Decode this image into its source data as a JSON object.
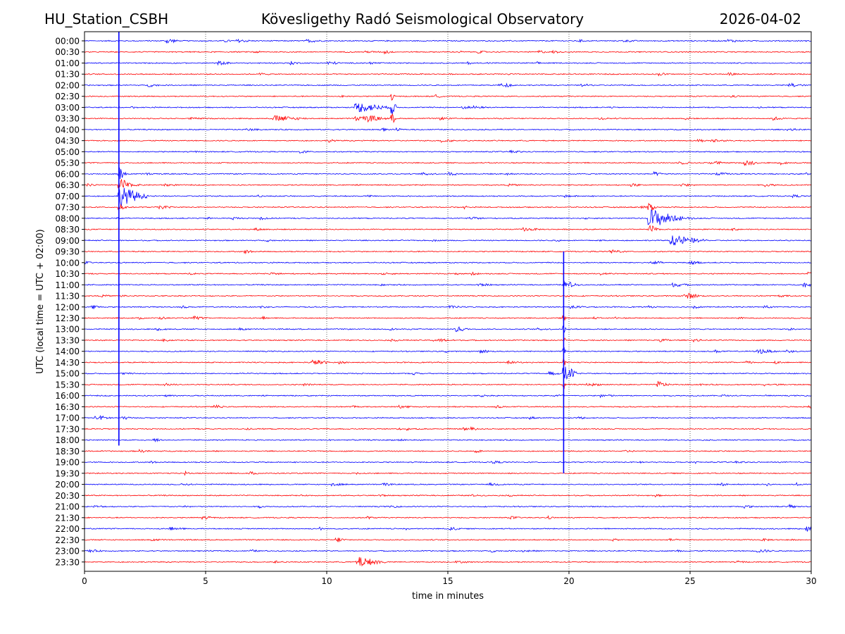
{
  "header": {
    "station": "HU_Station_CSBH",
    "observatory": "Kövesligethy Radó Seismological Observatory",
    "date": "2026-04-02"
  },
  "colors": {
    "even_row": "#0000ff",
    "odd_row": "#ff0000",
    "grid": "#000000"
  },
  "chart_data": {
    "type": "line",
    "title": "Kövesligethy Radó Seismological Observatory",
    "xlabel": "time in minutes",
    "ylabel": "UTC (local time = UTC + 02:00)",
    "xlim": [
      0,
      30
    ],
    "xticks": [
      0,
      5,
      10,
      15,
      20,
      25,
      30
    ],
    "grid": "vertical dotted at x ticks",
    "row_labels": [
      "00:00",
      "00:30",
      "01:00",
      "01:30",
      "02:00",
      "02:30",
      "03:00",
      "03:30",
      "04:00",
      "04:30",
      "05:00",
      "05:30",
      "06:00",
      "06:30",
      "07:00",
      "07:30",
      "08:00",
      "08:30",
      "09:00",
      "09:30",
      "10:00",
      "10:30",
      "11:00",
      "11:30",
      "12:00",
      "12:30",
      "13:00",
      "13:30",
      "14:00",
      "14:30",
      "15:00",
      "15:30",
      "16:00",
      "16:30",
      "17:00",
      "17:30",
      "18:00",
      "18:30",
      "19:00",
      "19:30",
      "20:00",
      "20:30",
      "21:00",
      "21:30",
      "22:00",
      "22:30",
      "23:00",
      "23:30"
    ],
    "series_color_pattern": [
      "blue",
      "red"
    ],
    "events": [
      {
        "row": "00:00",
        "minute": 3.4,
        "amp": 0.5,
        "dur": 0.5
      },
      {
        "row": "02:30",
        "minute": 12.7,
        "amp": 1.0,
        "dur": 0.1
      },
      {
        "row": "03:00",
        "minute": 11.2,
        "amp": 0.9,
        "dur": 1.5
      },
      {
        "row": "03:00",
        "minute": 12.7,
        "amp": 1.5,
        "dur": 0.2
      },
      {
        "row": "03:30",
        "minute": 7.8,
        "amp": 0.5,
        "dur": 1.4
      },
      {
        "row": "03:30",
        "minute": 11.2,
        "amp": 0.45,
        "dur": 1.5
      },
      {
        "row": "03:30",
        "minute": 12.7,
        "amp": 0.9,
        "dur": 0.2
      },
      {
        "row": "06:00",
        "minute": 1.42,
        "amp": 1.3,
        "dur": 0.3
      },
      {
        "row": "06:30",
        "minute": 1.42,
        "amp": 1.4,
        "dur": 0.5
      },
      {
        "row": "07:00",
        "minute": 1.42,
        "amp": 1.8,
        "dur": 1.2
      },
      {
        "row": "07:30",
        "minute": 1.42,
        "amp": 0.9,
        "dur": 0.3
      },
      {
        "row": "07:30",
        "minute": 23.3,
        "amp": 1.0,
        "dur": 0.3
      },
      {
        "row": "08:00",
        "minute": 23.3,
        "amp": 1.8,
        "dur": 1.4
      },
      {
        "row": "08:30",
        "minute": 23.3,
        "amp": 0.8,
        "dur": 0.3
      },
      {
        "row": "09:00",
        "minute": 24.2,
        "amp": 0.9,
        "dur": 1.5
      },
      {
        "row": "11:00",
        "minute": 19.8,
        "amp": 0.7,
        "dur": 0.6
      },
      {
        "row": "12:30",
        "minute": 19.78,
        "amp": 0.8,
        "dur": 0.1
      },
      {
        "row": "13:00",
        "minute": 19.78,
        "amp": 1.2,
        "dur": 0.1
      },
      {
        "row": "13:00",
        "minute": 15.3,
        "amp": 0.5,
        "dur": 0.6
      },
      {
        "row": "13:30",
        "minute": 19.78,
        "amp": 1.2,
        "dur": 0.1
      },
      {
        "row": "14:00",
        "minute": 19.78,
        "amp": 1.2,
        "dur": 0.1
      },
      {
        "row": "14:00",
        "minute": 27.8,
        "amp": 0.4,
        "dur": 0.8
      },
      {
        "row": "14:30",
        "minute": 19.78,
        "amp": 1.2,
        "dur": 0.1
      },
      {
        "row": "15:00",
        "minute": 19.78,
        "amp": 1.6,
        "dur": 0.6
      },
      {
        "row": "15:30",
        "minute": 19.78,
        "amp": 1.2,
        "dur": 0.1
      },
      {
        "row": "15:30",
        "minute": 23.65,
        "amp": 0.6,
        "dur": 0.5
      },
      {
        "row": "23:30",
        "minute": 11.25,
        "amp": 0.9,
        "dur": 1.2
      },
      {
        "row": "22:30",
        "minute": 10.4,
        "amp": 0.5,
        "dur": 0.4
      },
      {
        "row": "22:00",
        "minute": 29.8,
        "amp": 0.5,
        "dur": 0.4
      },
      {
        "row": "11:00",
        "minute": 29.7,
        "amp": 0.4,
        "dur": 0.5
      },
      {
        "row": "12:00",
        "minute": 0.3,
        "amp": 0.4,
        "dur": 0.4
      }
    ]
  }
}
